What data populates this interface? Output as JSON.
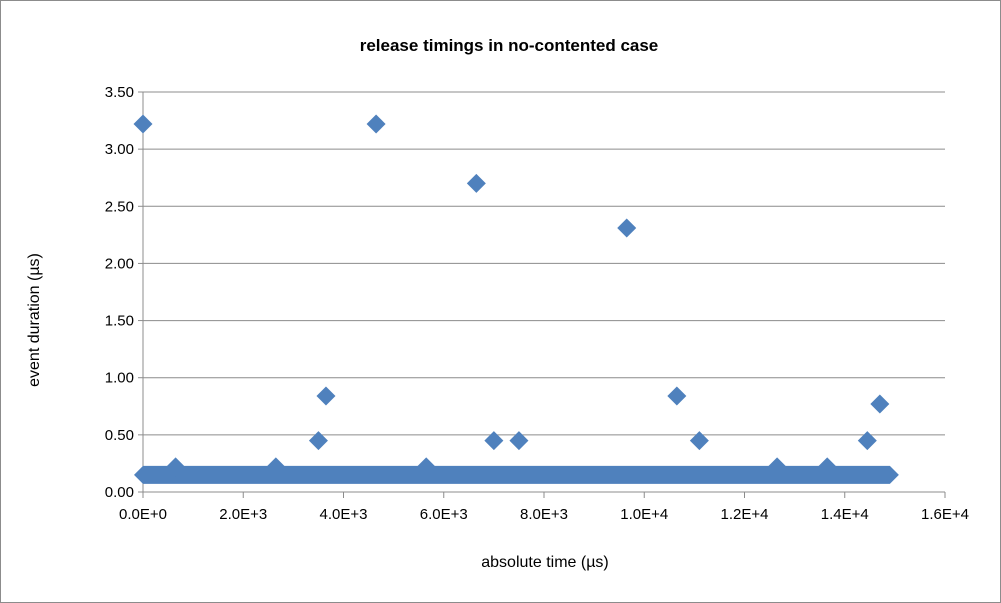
{
  "chart_data": {
    "type": "scatter",
    "title": "release timings in no-contented case",
    "xlabel": "absolute time (µs)",
    "ylabel": "event duration (µs)",
    "xlim": [
      0,
      16000
    ],
    "ylim": [
      0,
      3.5
    ],
    "x_ticks": [
      "0.0E+0",
      "2.0E+3",
      "4.0E+3",
      "6.0E+3",
      "8.0E+3",
      "1.0E+4",
      "1.2E+4",
      "1.4E+4",
      "1.6E+4"
    ],
    "y_ticks": [
      "0.00",
      "0.50",
      "1.00",
      "1.50",
      "2.00",
      "2.50",
      "3.00",
      "3.50"
    ],
    "grid": "horizontal",
    "legend": "none",
    "marker": "diamond",
    "series_color": "#4f81bd",
    "baseline_band": {
      "x_start": 0,
      "x_end": 14900,
      "y": 0.15
    },
    "points": [
      {
        "x": 0,
        "y": 3.22
      },
      {
        "x": 650,
        "y": 0.22
      },
      {
        "x": 2650,
        "y": 0.22
      },
      {
        "x": 3500,
        "y": 0.45
      },
      {
        "x": 3650,
        "y": 0.84
      },
      {
        "x": 4650,
        "y": 3.22
      },
      {
        "x": 5650,
        "y": 0.22
      },
      {
        "x": 6650,
        "y": 2.7
      },
      {
        "x": 7000,
        "y": 0.45
      },
      {
        "x": 7500,
        "y": 0.45
      },
      {
        "x": 9650,
        "y": 2.31
      },
      {
        "x": 10650,
        "y": 0.84
      },
      {
        "x": 11100,
        "y": 0.45
      },
      {
        "x": 12650,
        "y": 0.22
      },
      {
        "x": 13650,
        "y": 0.22
      },
      {
        "x": 14450,
        "y": 0.45
      },
      {
        "x": 14700,
        "y": 0.77
      }
    ]
  }
}
